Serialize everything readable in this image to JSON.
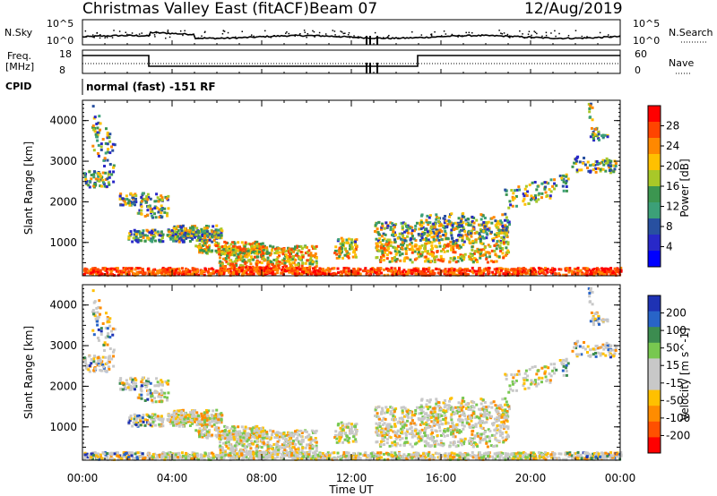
{
  "header": {
    "station": "Christmas Valley East (fitACF)",
    "beam": "Beam 07",
    "date": "12/Aug/2019"
  },
  "status_panels": {
    "nsky_label": "N.Sky",
    "nsearch_label": "N.Search",
    "nsky_ticks": [
      "10^5",
      "10^0"
    ],
    "nsearch_ticks": [
      "10^5",
      "10^0"
    ],
    "freq_label_1": "Freq.",
    "freq_label_2": "[MHz]",
    "freq_ticks": [
      "18",
      "8"
    ],
    "nave_label": "Nave",
    "nave_ticks": [
      "60",
      "0"
    ],
    "cpid_label": "CPID",
    "cpid_text": "normal (fast) -151 RF"
  },
  "chart_data": [
    {
      "type": "heatmap",
      "name": "power",
      "ylabel": "Slant Range [km]",
      "ylim": [
        180,
        4500
      ],
      "yticks": [
        1000,
        2000,
        3000,
        4000
      ],
      "xlim": [
        0,
        24
      ],
      "colorbar_label": "Power [dB]",
      "colorbar_ticks": [
        "28",
        "24",
        "20",
        "16",
        "12",
        "8",
        "4"
      ],
      "colorbar_colors": [
        "#ff0000",
        "#ff4400",
        "#ff8800",
        "#ffc000",
        "#a8c828",
        "#3c9650",
        "#3ca078",
        "#2850a0",
        "#2828c8",
        "#0000ff"
      ]
    },
    {
      "type": "heatmap",
      "name": "velocity",
      "ylabel": "Slant Range [km]",
      "ylim": [
        180,
        4500
      ],
      "yticks": [
        1000,
        2000,
        3000,
        4000
      ],
      "xlim": [
        0,
        24
      ],
      "xticks": [
        "00:00",
        "04:00",
        "08:00",
        "12:00",
        "16:00",
        "20:00",
        "00:00"
      ],
      "xlabel": "Time UT",
      "colorbar_label": "Velocity [m s^-1]",
      "colorbar_ticks": [
        "200",
        "100",
        "50",
        "15",
        "-15",
        "-50",
        "-100",
        "-200"
      ],
      "colorbar_colors": [
        "#1e32b4",
        "#2864c8",
        "#3c8c50",
        "#78c850",
        "#c8c8c8",
        "#c8c8c8",
        "#ffc000",
        "#ff8c00",
        "#ff5000",
        "#ff0000"
      ]
    }
  ]
}
